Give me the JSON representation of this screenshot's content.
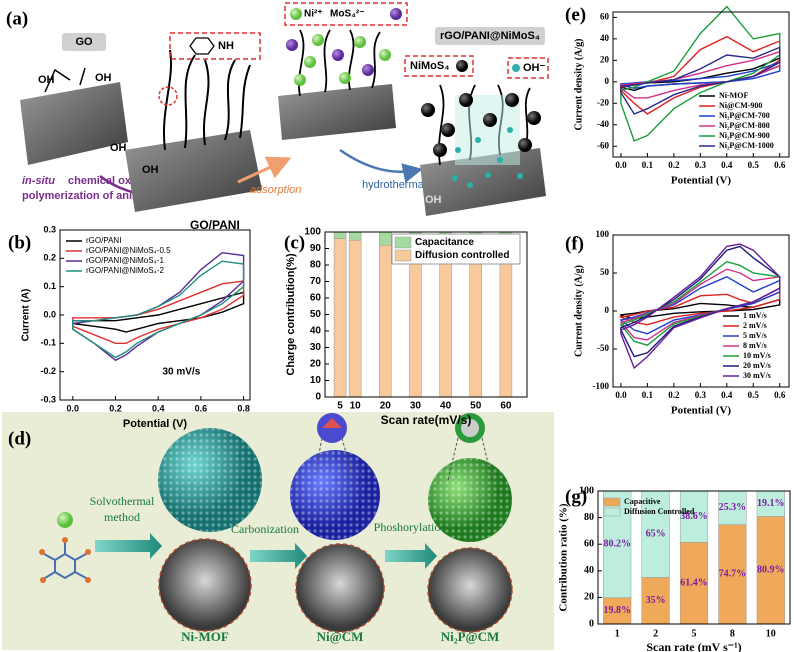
{
  "panels": {
    "a": {
      "label": "(a)",
      "go": "GO",
      "nh": "NH",
      "ni_ion": "Ni²⁺",
      "mos_ion": "MoS₄²⁻",
      "product": "rGO/PANI@NiMoS₄",
      "nimos": "NiMoS₄",
      "oh_ion": "OH⁻",
      "oh_labels": [
        "OH",
        "OH",
        "OH",
        "OH",
        "OH"
      ],
      "method": [
        "in-situ",
        "chemical oxidation",
        "polymerization of aniline"
      ],
      "adsorption": "adsorption",
      "hydrothermal": "hydrothermal",
      "go_pani": "GO/PANI"
    },
    "d": {
      "label": "(d)",
      "solvothermal": [
        "Solvothermal",
        "method"
      ],
      "carbonization": "Carbonization",
      "phosphorylation": "Phoshorylation",
      "ni_mof": "Ni-MOF",
      "ni_cm": "Ni@CM",
      "ni2p_cm": "Ni₂P@CM"
    }
  },
  "chart_data": [
    {
      "type": "line",
      "label": "(b)",
      "x_label": "Potential (V)",
      "y_label": "Current (A)",
      "annotation": "30 mV/s",
      "legend": "upper left",
      "xlim": [
        -0.06,
        0.83
      ],
      "ylim": [
        -0.3,
        0.3
      ],
      "xticks": [
        {
          "value": 0,
          "label": "0.0"
        },
        0.2,
        0.4,
        0.6,
        0.8
      ],
      "yticks": [
        -0.3,
        -0.2,
        -0.1,
        {
          "value": 0,
          "label": "0.0"
        },
        0.1,
        0.2,
        0.3
      ],
      "x": [
        0,
        0.1,
        0.2,
        0.3,
        0.4,
        0.5,
        0.6,
        0.7,
        0.8,
        0.8,
        0.7,
        0.6,
        0.5,
        0.4,
        0.3,
        0.25,
        0.2,
        0.1,
        0
      ],
      "series": [
        {
          "name": "rGO/PANI",
          "color": "#000000",
          "values": [
            -0.02,
            -0.02,
            -0.02,
            -0.01,
            0,
            0.02,
            0.04,
            0.06,
            0.08,
            0.04,
            0.01,
            -0.01,
            -0.02,
            -0.03,
            -0.05,
            -0.06,
            -0.05,
            -0.04,
            -0.03
          ]
        },
        {
          "name": "rGO/PANI@NiMoS₄-0.5",
          "color": "#e03030",
          "values": [
            -0.01,
            -0.01,
            -0.01,
            0,
            0.02,
            0.05,
            0.08,
            0.11,
            0.12,
            0.07,
            0.02,
            -0.01,
            -0.03,
            -0.05,
            -0.08,
            -0.1,
            -0.1,
            -0.07,
            -0.04
          ]
        },
        {
          "name": "rGO/PANI@NiMoS₄-1",
          "color": "#5b2a9b",
          "values": [
            -0.03,
            -0.02,
            -0.01,
            0,
            0.03,
            0.08,
            0.16,
            0.22,
            0.21,
            0.12,
            0.05,
            0,
            -0.03,
            -0.06,
            -0.11,
            -0.14,
            -0.16,
            -0.1,
            -0.05
          ]
        },
        {
          "name": "rGO/PANI@NiMoS₄-2",
          "color": "#1f8f7a",
          "values": [
            -0.02,
            -0.02,
            -0.01,
            0,
            0.03,
            0.07,
            0.14,
            0.19,
            0.18,
            0.1,
            0.04,
            0,
            -0.03,
            -0.06,
            -0.1,
            -0.13,
            -0.15,
            -0.1,
            -0.05
          ]
        }
      ]
    },
    {
      "type": "bar",
      "stacked": true,
      "label": "(c)",
      "x_label": "Scan rate(mV/s)",
      "y_label": "Charge contribution(%)",
      "legend": "upper right",
      "x": [
        5,
        10,
        20,
        30,
        40,
        50,
        60
      ],
      "xlim": [
        0,
        67
      ],
      "xticks": [
        5,
        10,
        20,
        30,
        40,
        50,
        60
      ],
      "ylim": [
        0,
        100
      ],
      "yticks": [
        0,
        10,
        20,
        30,
        40,
        50,
        60,
        70,
        80,
        90,
        100
      ],
      "series": [
        {
          "name": "Diffusion controlled",
          "color": "#f7c99b",
          "values": [
            96,
            95,
            92,
            91,
            90,
            89,
            88
          ]
        },
        {
          "name": "Capacitance",
          "color": "#a6d9a0",
          "values": [
            4,
            5,
            8,
            9,
            10,
            11,
            12
          ]
        }
      ]
    },
    {
      "type": "line",
      "label": "(e)",
      "x_label": "Potential (V)",
      "y_label": "Current density (A/g)",
      "legend": "lower right",
      "xlim": [
        -0.03,
        0.635
      ],
      "ylim": [
        -70,
        65
      ],
      "xticks": [
        {
          "value": 0,
          "label": "0.0"
        },
        0.1,
        0.2,
        0.3,
        0.4,
        0.5,
        0.6
      ],
      "yticks": [
        -60,
        -40,
        -20,
        0,
        20,
        40,
        60
      ],
      "x": [
        0,
        0.05,
        0.1,
        0.2,
        0.3,
        0.4,
        0.5,
        0.6,
        0.6,
        0.5,
        0.4,
        0.3,
        0.2,
        0.1,
        0.05,
        0
      ],
      "series": [
        {
          "name": "Ni-MOF",
          "color": "#000000",
          "values": [
            -3,
            -2,
            -1,
            0,
            3,
            8,
            12,
            22,
            15,
            5,
            0,
            -1,
            -2,
            -4,
            -8,
            -5
          ]
        },
        {
          "name": "Ni@CM-900",
          "color": "#e02020",
          "values": [
            -5,
            -3,
            -1,
            5,
            30,
            42,
            28,
            38,
            20,
            5,
            0,
            -5,
            -15,
            -30,
            -20,
            -8
          ]
        },
        {
          "name": "Ni₂P@CM-700",
          "color": "#1f3fd0",
          "values": [
            -2,
            -1,
            0,
            1,
            3,
            5,
            10,
            18,
            10,
            3,
            0,
            -1,
            -2,
            -4,
            -6,
            -3
          ]
        },
        {
          "name": "Ni₂P@CM-800",
          "color": "#d0308a",
          "values": [
            -3,
            -2,
            0,
            2,
            8,
            15,
            20,
            28,
            15,
            5,
            0,
            -3,
            -8,
            -15,
            -15,
            -6
          ]
        },
        {
          "name": "Ni₂P@CM-900",
          "color": "#1aa03a",
          "values": [
            -8,
            -5,
            0,
            10,
            45,
            70,
            40,
            45,
            25,
            8,
            0,
            -10,
            -25,
            -50,
            -55,
            -20
          ]
        },
        {
          "name": "Ni₂P@CM-1000",
          "color": "#2a2a8a",
          "values": [
            -4,
            -3,
            -1,
            2,
            12,
            25,
            22,
            32,
            18,
            5,
            0,
            -4,
            -12,
            -25,
            -30,
            -10
          ]
        }
      ]
    },
    {
      "type": "line",
      "label": "(f)",
      "x_label": "Potential (V)",
      "y_label": "Current density (A/g)",
      "legend": "lower right",
      "xlim": [
        -0.03,
        0.635
      ],
      "ylim": [
        -100,
        100
      ],
      "xticks": [
        {
          "value": 0,
          "label": "0.0"
        },
        0.1,
        0.2,
        0.3,
        0.4,
        0.5,
        0.6
      ],
      "yticks": [
        -100,
        -50,
        0,
        50,
        100
      ],
      "x": [
        0,
        0.05,
        0.1,
        0.2,
        0.3,
        0.4,
        0.45,
        0.5,
        0.6,
        0.6,
        0.5,
        0.4,
        0.3,
        0.2,
        0.1,
        0.05,
        0
      ],
      "series": [
        {
          "name": "1 mV/s",
          "color": "#000000",
          "values": [
            -5,
            -3,
            0,
            3,
            10,
            8,
            6,
            5,
            15,
            8,
            2,
            0,
            -1,
            -3,
            -8,
            -10,
            -6
          ]
        },
        {
          "name": "2 mV/s",
          "color": "#e02020",
          "values": [
            -8,
            -5,
            0,
            5,
            20,
            22,
            15,
            10,
            25,
            15,
            5,
            0,
            -3,
            -8,
            -18,
            -15,
            -8
          ]
        },
        {
          "name": "5 mV/s",
          "color": "#1f3fd0",
          "values": [
            -12,
            -8,
            -2,
            8,
            30,
            45,
            35,
            25,
            40,
            25,
            10,
            2,
            -5,
            -12,
            -30,
            -25,
            -12
          ]
        },
        {
          "name": "8 mV/s",
          "color": "#d0308a",
          "values": [
            -15,
            -10,
            -3,
            10,
            35,
            55,
            50,
            40,
            45,
            30,
            12,
            3,
            -6,
            -15,
            -38,
            -35,
            -15
          ]
        },
        {
          "name": "10 mV/s",
          "color": "#1aa03a",
          "values": [
            -18,
            -12,
            -4,
            12,
            38,
            65,
            60,
            50,
            45,
            30,
            12,
            3,
            -7,
            -17,
            -45,
            -40,
            -18
          ]
        },
        {
          "name": "20 mV/s",
          "color": "#1a1a7a",
          "values": [
            -22,
            -15,
            -6,
            15,
            42,
            80,
            85,
            70,
            45,
            30,
            12,
            3,
            -8,
            -20,
            -55,
            -60,
            -25
          ]
        },
        {
          "name": "30 mV/s",
          "color": "#6a1b9a",
          "values": [
            -25,
            -18,
            -8,
            18,
            45,
            85,
            88,
            80,
            45,
            30,
            12,
            3,
            -9,
            -22,
            -60,
            -75,
            -30
          ]
        }
      ]
    },
    {
      "type": "bar",
      "stacked": true,
      "label": "(g)",
      "x_label": "Scan rate (mV s⁻¹)",
      "y_label": "Contribution ratio (%)",
      "legend": "upper left",
      "label_color": "#7b1fa2",
      "categories": [
        "1",
        "2",
        "5",
        "8",
        "10"
      ],
      "ylim": [
        0,
        100
      ],
      "yticks": [
        0,
        20,
        40,
        60,
        80,
        100
      ],
      "series": [
        {
          "name": "Capacitive",
          "color": "#f0a95a",
          "values": [
            19.8,
            35,
            61.4,
            74.7,
            80.9
          ],
          "value_labels": [
            "19.8%",
            "35%",
            "61.4%",
            "74.7%",
            "80.9%"
          ]
        },
        {
          "name": "Diffusion Controlled",
          "color": "#bdeedd",
          "values": [
            80.2,
            65,
            38.6,
            25.3,
            19.1
          ],
          "value_labels": [
            "80.2%",
            "65%",
            "38.6%",
            "25.3%",
            "19.1%"
          ]
        }
      ]
    }
  ]
}
